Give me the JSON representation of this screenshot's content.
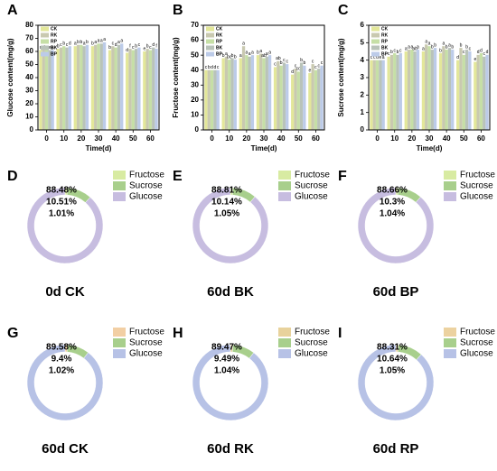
{
  "chart_data": [
    {
      "type": "bar",
      "panel": "A",
      "y_label": "Glucose content(mg/g)",
      "x_label": "Time(d)",
      "categories": [
        "0",
        "10",
        "20",
        "30",
        "40",
        "50",
        "60"
      ],
      "ylim": [
        0,
        80
      ],
      "yticks": [
        0,
        10,
        20,
        30,
        40,
        50,
        60,
        70,
        80
      ],
      "series": [
        {
          "name": "CK",
          "color": "#e3e79a",
          "values": [
            61,
            62,
            64,
            64,
            61,
            59,
            60
          ],
          "letters": [
            "c",
            "b",
            "a",
            "b",
            "b",
            "d",
            "e"
          ]
        },
        {
          "name": "RK",
          "color": "#c9c9b0",
          "values": [
            61,
            63,
            65,
            65,
            64,
            62,
            62
          ],
          "letters": [
            "d",
            "c",
            "b",
            "a",
            "c",
            "f",
            "b"
          ]
        },
        {
          "name": "RP",
          "color": "#c6dfa6",
          "values": [
            61,
            64,
            65,
            66,
            63,
            61,
            61
          ],
          "letters": [
            "e",
            "b",
            "b",
            "a",
            "d",
            "c",
            "c"
          ]
        },
        {
          "name": "BK",
          "color": "#b9c3b9",
          "values": [
            61,
            63,
            64,
            66,
            65,
            62,
            63
          ],
          "letters": [
            "e",
            "c",
            "a",
            "a",
            "a",
            "b",
            "d"
          ]
        },
        {
          "name": "BP",
          "color": "#bccbe8",
          "values": [
            61,
            64,
            65,
            67,
            66,
            63,
            62
          ],
          "letters": [
            "a",
            "d",
            "b",
            "a",
            "a",
            "c",
            "f"
          ]
        }
      ]
    },
    {
      "type": "bar",
      "panel": "B",
      "y_label": "Fructose content(mg/g)",
      "x_label": "Time(d)",
      "categories": [
        "0",
        "10",
        "20",
        "30",
        "40",
        "50",
        "60"
      ],
      "ylim": [
        0,
        70
      ],
      "yticks": [
        0,
        10,
        20,
        30,
        40,
        50,
        60,
        70
      ],
      "series": [
        {
          "name": "CK",
          "color": "#e3e79a",
          "values": [
            40,
            48,
            48,
            50,
            42,
            37,
            38
          ],
          "letters": [
            "c",
            "b",
            "a",
            "b",
            "c",
            "d",
            "e"
          ]
        },
        {
          "name": "RK",
          "color": "#c9c9b0",
          "values": [
            40,
            49,
            56,
            51,
            46,
            41,
            44
          ],
          "letters": [
            "b",
            "a",
            "a",
            "a",
            "ab",
            "c",
            "c"
          ]
        },
        {
          "name": "RP",
          "color": "#c6dfa6",
          "values": [
            40,
            47,
            50,
            48,
            43,
            39,
            40
          ],
          "letters": [
            "d",
            "bc",
            "a",
            "ab",
            "b",
            "cd",
            "c"
          ]
        },
        {
          "name": "BK",
          "color": "#b9c3b9",
          "values": [
            40,
            48,
            49,
            49,
            45,
            45,
            41
          ],
          "letters": [
            "d",
            "b",
            "a",
            "a",
            "c",
            "b",
            "c"
          ]
        },
        {
          "name": "BP",
          "color": "#bccbe8",
          "values": [
            40,
            47,
            50,
            50,
            44,
            43,
            43
          ],
          "letters": [
            "c",
            "b",
            "a",
            "a",
            "c",
            "b",
            "c"
          ]
        }
      ]
    },
    {
      "type": "bar",
      "panel": "C",
      "y_label": "Sucrose content(mg/g)",
      "x_label": "Time(d)",
      "categories": [
        "0",
        "10",
        "20",
        "30",
        "40",
        "50",
        "60"
      ],
      "ylim": [
        0,
        6
      ],
      "yticks": [
        0,
        1,
        2,
        3,
        4,
        5,
        6
      ],
      "series": [
        {
          "name": "CK",
          "color": "#e3e79a",
          "values": [
            4.0,
            4.2,
            4.5,
            4.5,
            4.4,
            4.0,
            3.9
          ],
          "letters": [
            "c",
            "c",
            "a",
            "a",
            "b",
            "d",
            "e"
          ]
        },
        {
          "name": "RK",
          "color": "#c9c9b0",
          "values": [
            4.0,
            4.3,
            4.6,
            4.9,
            4.8,
            4.7,
            4.3
          ],
          "letters": [
            "c",
            "b",
            "a",
            "a",
            "a",
            "b",
            "d"
          ]
        },
        {
          "name": "RP",
          "color": "#c6dfa6",
          "values": [
            4.0,
            4.4,
            4.6,
            4.8,
            4.6,
            4.3,
            4.4
          ],
          "letters": [
            "d",
            "c",
            "a",
            "a",
            "b",
            "c",
            "d"
          ]
        },
        {
          "name": "BK",
          "color": "#b9c3b9",
          "values": [
            4.0,
            4.3,
            4.5,
            4.6,
            4.7,
            4.6,
            4.2
          ],
          "letters": [
            "e",
            "b",
            "ab",
            "b",
            "a",
            "b",
            "c"
          ]
        },
        {
          "name": "BP",
          "color": "#bccbe8",
          "values": [
            4.0,
            4.4,
            4.6,
            4.7,
            4.6,
            4.5,
            4.3
          ],
          "letters": [
            "a",
            "c",
            "a",
            "b",
            "b",
            "c",
            "d"
          ]
        }
      ]
    },
    {
      "type": "pie",
      "panel": "D",
      "title": "0d CK",
      "categories": [
        "Fructose",
        "Sucrose",
        "Glucose"
      ],
      "values": [
        1.01,
        10.51,
        88.48
      ],
      "value_labels": [
        "1.01%",
        "10.51%",
        "88.48%"
      ],
      "colors": [
        "#d8eba2",
        "#a8cf8c",
        "#c7bde0"
      ]
    },
    {
      "type": "pie",
      "panel": "E",
      "title": "60d BK",
      "categories": [
        "Fructose",
        "Sucrose",
        "Glucose"
      ],
      "values": [
        1.05,
        10.14,
        88.81
      ],
      "value_labels": [
        "1.05%",
        "10.14%",
        "88.81%"
      ],
      "colors": [
        "#d8eba2",
        "#a8cf8c",
        "#c7bde0"
      ]
    },
    {
      "type": "pie",
      "panel": "F",
      "title": "60d BP",
      "categories": [
        "Fructose",
        "Sucrose",
        "Glucose"
      ],
      "values": [
        1.04,
        10.3,
        88.66
      ],
      "value_labels": [
        "1.04%",
        "10.3%",
        "88.66%"
      ],
      "colors": [
        "#d8eba2",
        "#a8cf8c",
        "#c7bde0"
      ]
    },
    {
      "type": "pie",
      "panel": "G",
      "title": "60d CK",
      "categories": [
        "Fructose",
        "Sucrose",
        "Glucose"
      ],
      "values": [
        1.02,
        9.4,
        89.58
      ],
      "value_labels": [
        "1.02%",
        "9.4%",
        "89.58%"
      ],
      "colors": [
        "#f2cfa4",
        "#a8cf8c",
        "#b7c2e6"
      ]
    },
    {
      "type": "pie",
      "panel": "H",
      "title": "60d RK",
      "categories": [
        "Fructose",
        "Sucrose",
        "Glucose"
      ],
      "values": [
        1.04,
        9.49,
        89.47
      ],
      "value_labels": [
        "1.04%",
        "9.49%",
        "89.47%"
      ],
      "colors": [
        "#e8d29c",
        "#a8cf8c",
        "#b7c2e6"
      ]
    },
    {
      "type": "pie",
      "panel": "I",
      "title": "60d RP",
      "categories": [
        "Fructose",
        "Sucrose",
        "Glucose"
      ],
      "values": [
        1.05,
        10.64,
        88.31
      ],
      "value_labels": [
        "1.05%",
        "10.64%",
        "88.31%"
      ],
      "colors": [
        "#ecd2a0",
        "#a8cf8c",
        "#b7c2e6"
      ]
    }
  ]
}
